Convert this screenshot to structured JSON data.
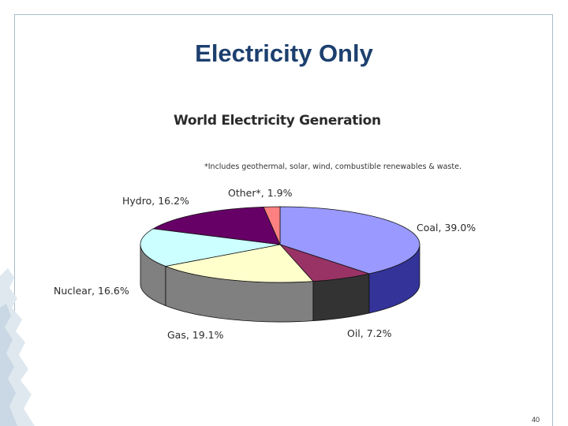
{
  "slide": {
    "title": "Electricity Only",
    "number": "40"
  },
  "chart_data": {
    "type": "pie",
    "title": "World Electricity Generation",
    "note": "*Includes geothermal, solar, wind, combustible renewables & waste.",
    "slices": [
      {
        "label": "Coal, 39.0%",
        "value": 39.0,
        "color": "#9999ff",
        "side_color": "#333399"
      },
      {
        "label": "Oil, 7.2%",
        "value": 7.2,
        "color": "#993366",
        "side_color": "#333333"
      },
      {
        "label": "Gas, 19.1%",
        "value": 19.1,
        "color": "#ffffcc",
        "side_color": "#808080"
      },
      {
        "label": "Nuclear, 16.6%",
        "value": 16.6,
        "color": "#ccffff",
        "side_color": "#808080"
      },
      {
        "label": "Hydro, 16.2%",
        "value": 16.2,
        "color": "#660066",
        "side_color": "#4d004d"
      },
      {
        "label": "Other*, 1.9%",
        "value": 1.9,
        "color": "#ff8080",
        "side_color": "#993333"
      }
    ]
  }
}
